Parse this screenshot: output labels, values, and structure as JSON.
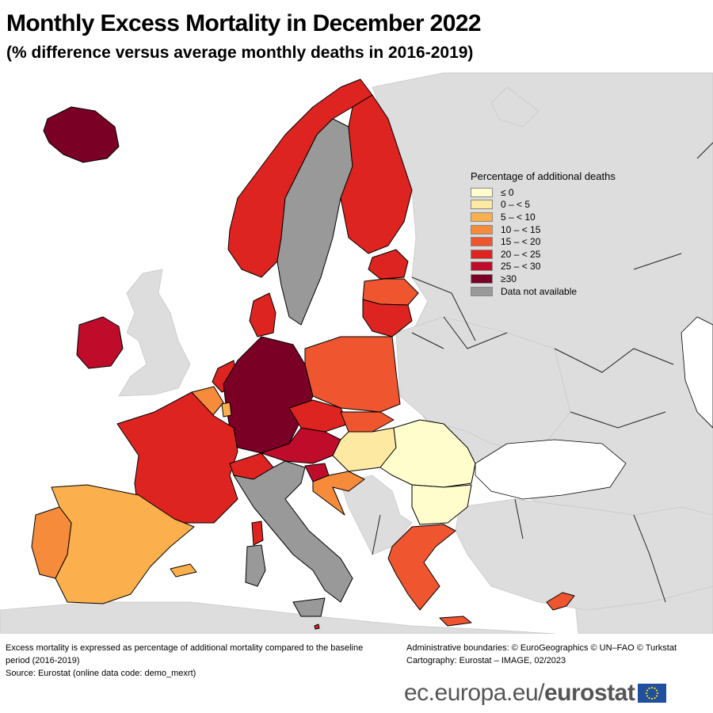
{
  "header": {
    "title": "Monthly Excess Mortality in December 2022",
    "subtitle": "(% difference versus average monthly deaths in 2016-2019)"
  },
  "legend": {
    "title": "Percentage of additional deaths",
    "items": [
      {
        "label": "≤ 0",
        "color": "#fffdcc"
      },
      {
        "label": "0 – < 5",
        "color": "#fde9a2"
      },
      {
        "label": "5 – < 10",
        "color": "#fbb04d"
      },
      {
        "label": "10 – < 15",
        "color": "#f68b3c"
      },
      {
        "label": "15 – < 20",
        "color": "#ef5630"
      },
      {
        "label": "20 – < 25",
        "color": "#dd2420"
      },
      {
        "label": "25 – < 30",
        "color": "#bf0c2b"
      },
      {
        "label": "≥30",
        "color": "#7a0026"
      },
      {
        "label": "Data not available",
        "color": "#999999"
      }
    ]
  },
  "notes": {
    "line1": "Excess mortality is expressed as percentage of additional mortality compared to the baseline period (2016-2019)",
    "line2": "Source: Eurostat (online data code: demo_mexrt)"
  },
  "credits": {
    "line1": "Administrative boundaries: © EuroGeographics © UN–FAO © Turkstat",
    "line2": "Cartography: Eurostat – IMAGE, 02/2023"
  },
  "footer": {
    "url": "ec.europa.eu/",
    "brand": "eurostat"
  }
}
